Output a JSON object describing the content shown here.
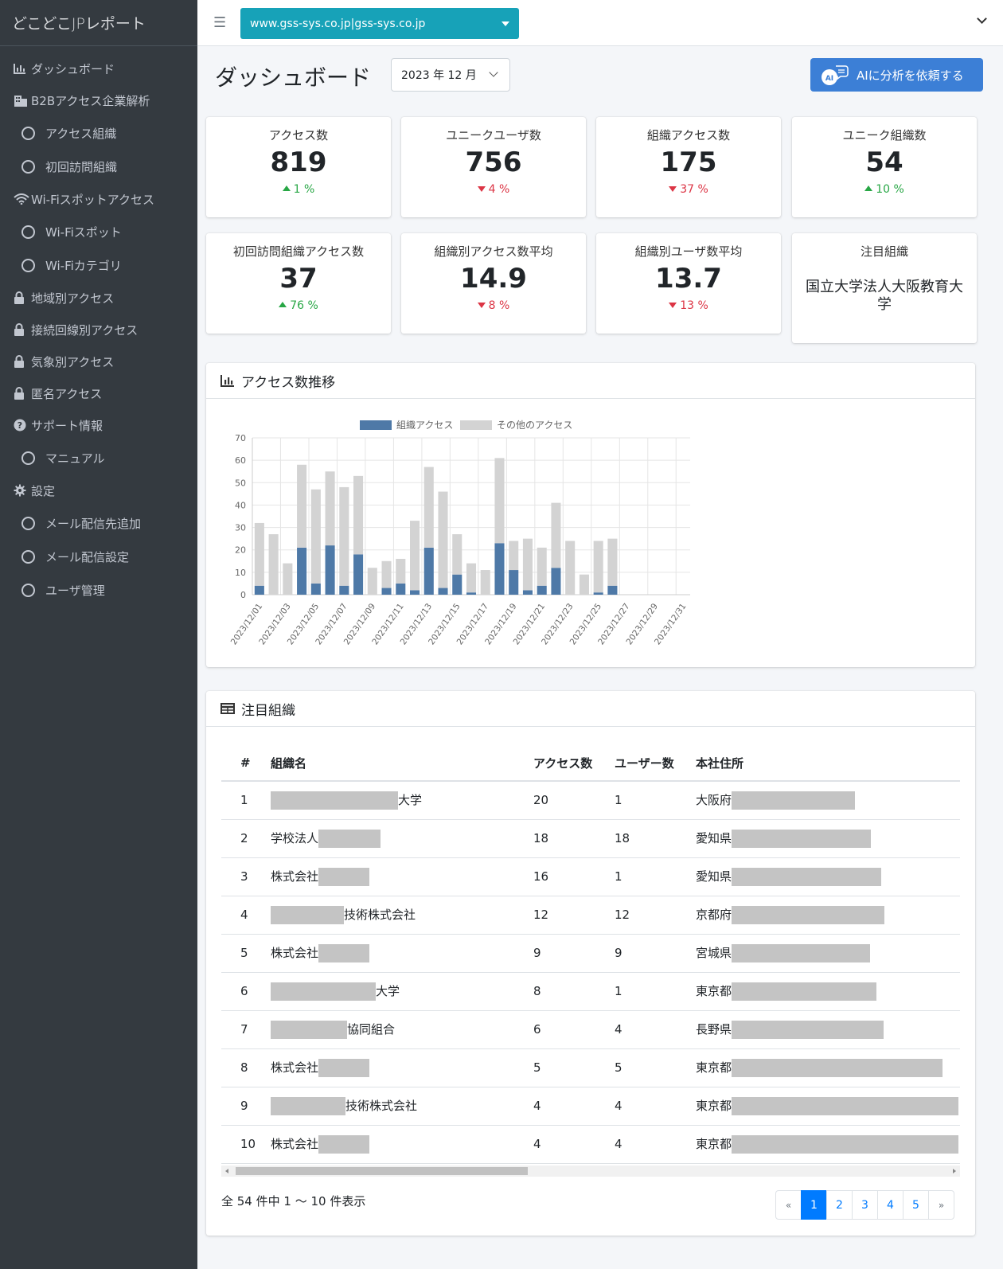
{
  "app": {
    "title": "どこどこJPレポート"
  },
  "sidebar": {
    "items": [
      {
        "label": "ダッシュボード",
        "icon": "chart-bar-icon",
        "sub": false
      },
      {
        "label": "B2Bアクセス企業解析",
        "icon": "building-icon",
        "sub": false
      },
      {
        "label": "アクセス組織",
        "icon": "circle-icon",
        "sub": true
      },
      {
        "label": "初回訪問組織",
        "icon": "circle-icon",
        "sub": true
      },
      {
        "label": "Wi-Fiスポットアクセス",
        "icon": "wifi-icon",
        "sub": false
      },
      {
        "label": "Wi-Fiスポット",
        "icon": "circle-icon",
        "sub": true
      },
      {
        "label": "Wi-Fiカテゴリ",
        "icon": "circle-icon",
        "sub": true
      },
      {
        "label": "地域別アクセス",
        "icon": "lock-icon",
        "sub": false
      },
      {
        "label": "接続回線別アクセス",
        "icon": "lock-icon",
        "sub": false
      },
      {
        "label": "気象別アクセス",
        "icon": "lock-icon",
        "sub": false
      },
      {
        "label": "匿名アクセス",
        "icon": "lock-icon",
        "sub": false
      },
      {
        "label": "サポート情報",
        "icon": "question-icon",
        "sub": false
      },
      {
        "label": "マニュアル",
        "icon": "circle-icon",
        "sub": true
      },
      {
        "label": "設定",
        "icon": "gear-icon",
        "sub": false
      },
      {
        "label": "メール配信先追加",
        "icon": "circle-icon",
        "sub": true
      },
      {
        "label": "メール配信設定",
        "icon": "circle-icon",
        "sub": true
      },
      {
        "label": "ユーザ管理",
        "icon": "circle-icon",
        "sub": true
      }
    ]
  },
  "topbar": {
    "domain": "www.gss-sys.co.jp|gss-sys.co.jp"
  },
  "header": {
    "title": "ダッシュボード",
    "month": "2023 年 12 月",
    "ai_button": "AIに分析を依頼する",
    "ai_icon_text": "AI"
  },
  "stats": [
    {
      "label": "アクセス数",
      "value": "819",
      "change": "1 %",
      "dir": "up"
    },
    {
      "label": "ユニークユーザ数",
      "value": "756",
      "change": "4 %",
      "dir": "down"
    },
    {
      "label": "組織アクセス数",
      "value": "175",
      "change": "37 %",
      "dir": "down"
    },
    {
      "label": "ユニーク組織数",
      "value": "54",
      "change": "10 %",
      "dir": "up"
    },
    {
      "label": "初回訪問組織アクセス数",
      "value": "37",
      "change": "76 %",
      "dir": "up"
    },
    {
      "label": "組織別アクセス数平均",
      "value": "14.9",
      "change": "8 %",
      "dir": "down"
    },
    {
      "label": "組織別ユーザ数平均",
      "value": "13.7",
      "change": "13 %",
      "dir": "down"
    }
  ],
  "featured": {
    "label": "注目組織",
    "name": "国立大学法人大阪教育大学"
  },
  "chart_card": {
    "title": "アクセス数推移"
  },
  "chart_data": {
    "type": "bar",
    "stacked": true,
    "categories": [
      "2023/12/01",
      "2023/12/02",
      "2023/12/03",
      "2023/12/04",
      "2023/12/05",
      "2023/12/06",
      "2023/12/07",
      "2023/12/08",
      "2023/12/09",
      "2023/12/10",
      "2023/12/11",
      "2023/12/12",
      "2023/12/13",
      "2023/12/14",
      "2023/12/15",
      "2023/12/16",
      "2023/12/17",
      "2023/12/18",
      "2023/12/19",
      "2023/12/20",
      "2023/12/21",
      "2023/12/22",
      "2023/12/23",
      "2023/12/24",
      "2023/12/25",
      "2023/12/26",
      "2023/12/27",
      "2023/12/28",
      "2023/12/29",
      "2023/12/30",
      "2023/12/31"
    ],
    "series": [
      {
        "name": "組織アクセス",
        "color": "#4e79a7",
        "values": [
          4,
          0,
          0,
          21,
          5,
          22,
          4,
          18,
          0,
          3,
          5,
          2,
          21,
          3,
          9,
          1,
          0,
          23,
          11,
          2,
          4,
          12,
          0,
          0,
          1,
          4,
          0,
          0,
          0,
          0,
          0
        ]
      },
      {
        "name": "その他のアクセス",
        "color": "#d3d3d3",
        "values": [
          28,
          27,
          14,
          37,
          42,
          33,
          44,
          35,
          12,
          12,
          11,
          31,
          36,
          43,
          18,
          13,
          11,
          38,
          13,
          23,
          17,
          29,
          24,
          9,
          23,
          21,
          0,
          0,
          0,
          0,
          0
        ]
      }
    ],
    "ylim": [
      0,
      70
    ],
    "yticks": [
      0,
      10,
      20,
      30,
      40,
      50,
      60,
      70
    ],
    "xticks": [
      "2023/12/01",
      "2023/12/03",
      "2023/12/05",
      "2023/12/07",
      "2023/12/09",
      "2023/12/11",
      "2023/12/13",
      "2023/12/15",
      "2023/12/17",
      "2023/12/19",
      "2023/12/21",
      "2023/12/23",
      "2023/12/25",
      "2023/12/27",
      "2023/12/29",
      "2023/12/31"
    ],
    "legend": "top",
    "grid": true
  },
  "table_card": {
    "title": "注目組織",
    "columns": [
      "#",
      "組織名",
      "アクセス数",
      "ユーザー数",
      "本社住所"
    ],
    "rows": [
      {
        "num": "1",
        "name_pre": "",
        "name_suf": "大学",
        "access": "20",
        "users": "1",
        "pref": "大阪府"
      },
      {
        "num": "2",
        "name_pre": "学校法人",
        "name_suf": "",
        "access": "18",
        "users": "18",
        "pref": "愛知県"
      },
      {
        "num": "3",
        "name_pre": "株式会社",
        "name_suf": "",
        "access": "16",
        "users": "1",
        "pref": "愛知県"
      },
      {
        "num": "4",
        "name_pre": "",
        "name_suf": "技術株式会社",
        "access": "12",
        "users": "12",
        "pref": "京都府"
      },
      {
        "num": "5",
        "name_pre": "株式会社",
        "name_suf": "",
        "access": "9",
        "users": "9",
        "pref": "宮城県"
      },
      {
        "num": "6",
        "name_pre": "",
        "name_suf": "大学",
        "access": "8",
        "users": "1",
        "pref": "東京都"
      },
      {
        "num": "7",
        "name_pre": "",
        "name_suf": "協同組合",
        "access": "6",
        "users": "4",
        "pref": "長野県"
      },
      {
        "num": "8",
        "name_pre": "株式会社",
        "name_suf": "",
        "access": "5",
        "users": "5",
        "pref": "東京都"
      },
      {
        "num": "9",
        "name_pre": "",
        "name_suf": "技術株式会社",
        "access": "4",
        "users": "4",
        "pref": "東京都"
      },
      {
        "num": "10",
        "name_pre": "株式会社",
        "name_suf": "",
        "access": "4",
        "users": "4",
        "pref": "東京都"
      }
    ],
    "info": "全 54 件中 1 〜 10 件表示",
    "pages": [
      "«",
      "1",
      "2",
      "3",
      "4",
      "5",
      "»"
    ],
    "active_page": "1"
  }
}
